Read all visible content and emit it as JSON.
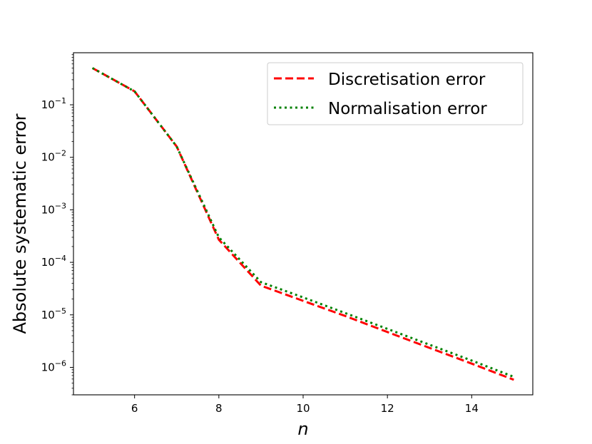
{
  "chart_data": {
    "type": "line",
    "xlabel": "n",
    "ylabel": "Absolute systematic error",
    "yscale": "log",
    "xlim": [
      4.55,
      15.45
    ],
    "ylim": [
      3e-07,
      0.98
    ],
    "xticks": [
      6,
      8,
      10,
      12,
      14
    ],
    "xtick_labels": [
      "6",
      "8",
      "10",
      "12",
      "14"
    ],
    "yticks": [
      1e-06,
      1e-05,
      0.0001,
      0.001,
      0.01,
      0.1
    ],
    "ytick_labels": [
      {
        "base": "10",
        "exp": "−6"
      },
      {
        "base": "10",
        "exp": "−5"
      },
      {
        "base": "10",
        "exp": "−4"
      },
      {
        "base": "10",
        "exp": "−3"
      },
      {
        "base": "10",
        "exp": "−2"
      },
      {
        "base": "10",
        "exp": "−1"
      }
    ],
    "grid": false,
    "legend_position": "upper right",
    "x": [
      5,
      6,
      7,
      8,
      9,
      10,
      11,
      12,
      13,
      14,
      15
    ],
    "series": [
      {
        "name": "Discretisation error",
        "color": "#ff0000",
        "style": "dashed",
        "values": [
          0.5,
          0.18,
          0.016,
          0.00027,
          3.6e-05,
          1.85e-05,
          9.5e-06,
          4.7e-06,
          2.35e-06,
          1.18e-06,
          5.8e-07
        ]
      },
      {
        "name": "Normalisation error",
        "color": "#008000",
        "style": "dotted",
        "values": [
          0.5,
          0.18,
          0.016,
          0.0003,
          4.2e-05,
          2.15e-05,
          1.08e-05,
          5.4e-06,
          2.7e-06,
          1.35e-06,
          6.6e-07
        ]
      }
    ]
  }
}
